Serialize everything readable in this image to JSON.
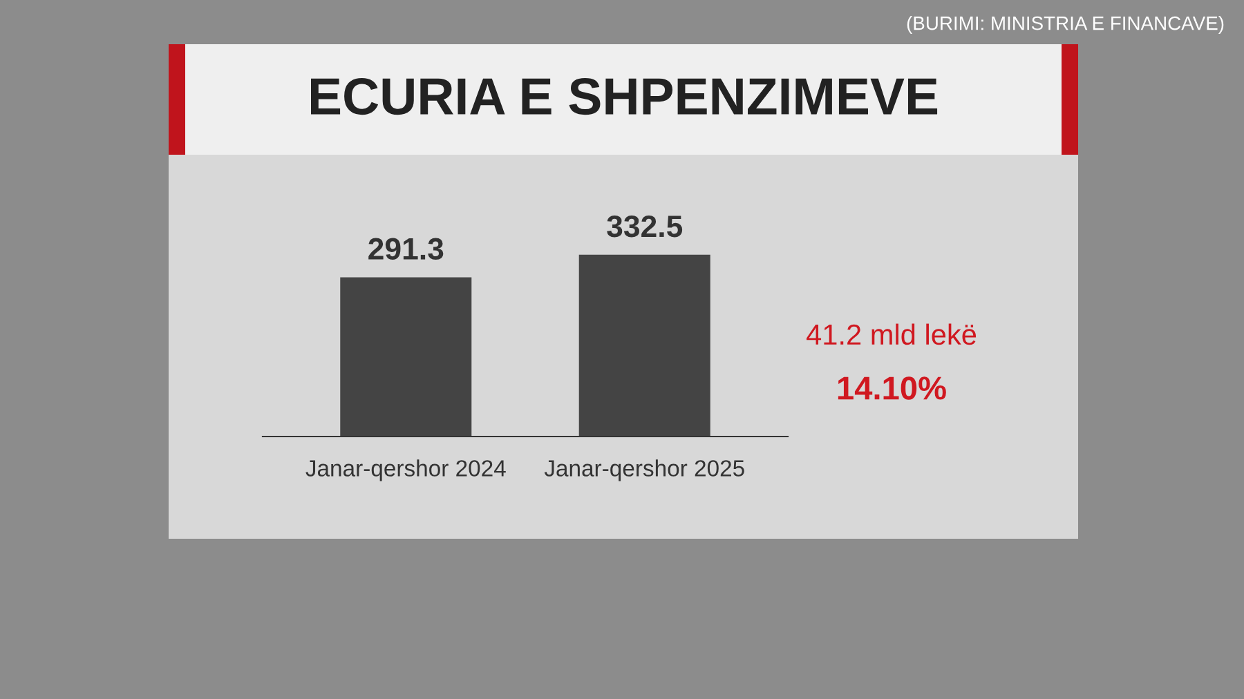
{
  "chart_data": {
    "type": "bar",
    "title": "ECURIA E SHPENZIMEVE",
    "categories": [
      "Janar-qershor 2024",
      "Janar-qershor 2025"
    ],
    "values": [
      291.3,
      332.5
    ],
    "color": "#444444",
    "data_labels": true,
    "grid": false,
    "legend": false,
    "annotations": [
      "41.2 mld lekë",
      "14.10%",
      "(BURIMI: MINISTRIA E FINANCAVE)"
    ]
  }
}
